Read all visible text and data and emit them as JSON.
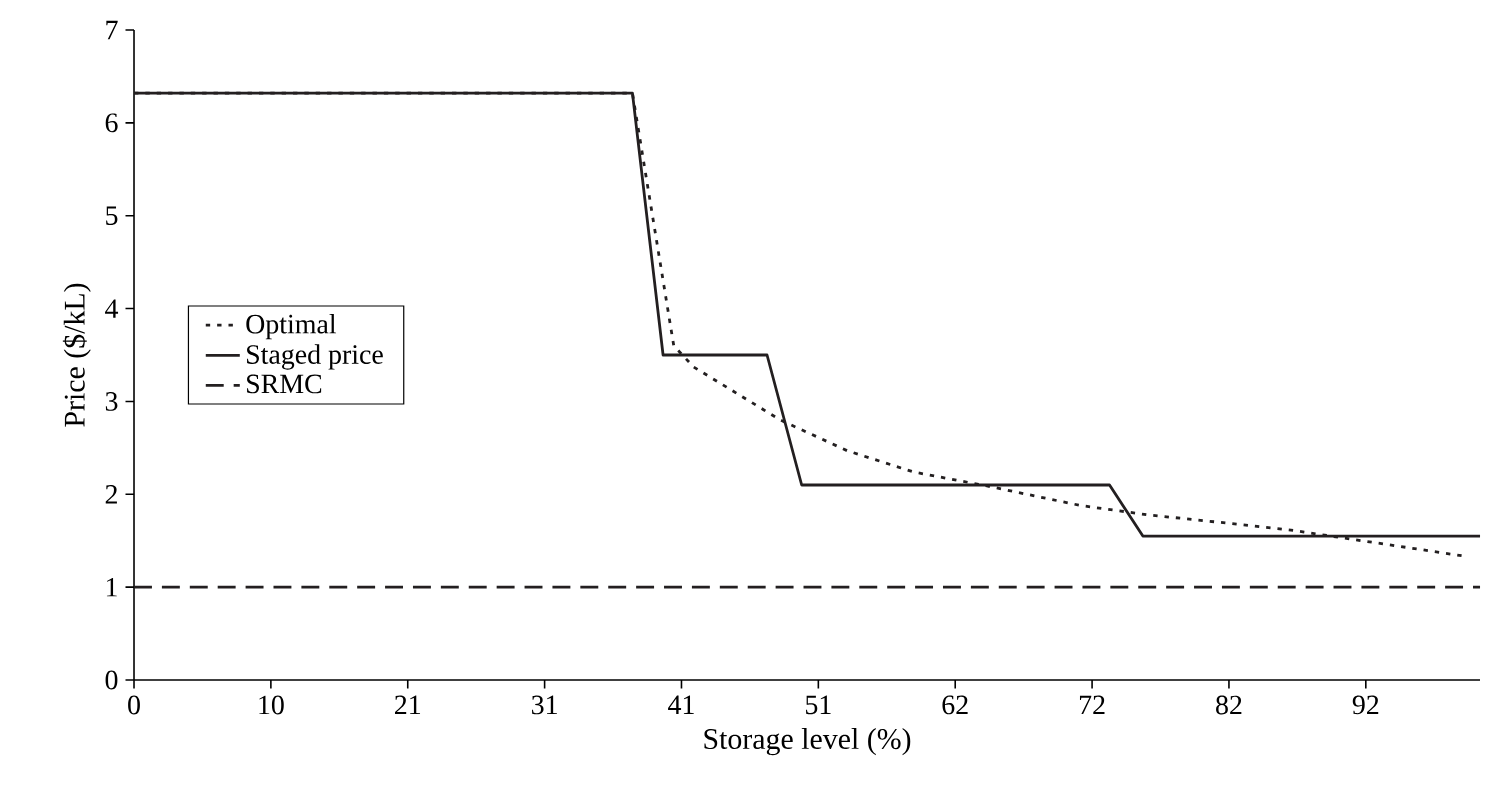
{
  "chart_data": {
    "type": "line",
    "xlabel": "Storage level (%)",
    "ylabel": "Price ($/kL)",
    "xlim": [
      0,
      101
    ],
    "ylim": [
      0,
      7
    ],
    "xticks": [
      {
        "value": 0,
        "label": "0"
      },
      {
        "value": 10.27,
        "label": "10"
      },
      {
        "value": 20.54,
        "label": "21"
      },
      {
        "value": 30.81,
        "label": "31"
      },
      {
        "value": 41.08,
        "label": "41"
      },
      {
        "value": 51.35,
        "label": "51"
      },
      {
        "value": 61.62,
        "label": "62"
      },
      {
        "value": 71.89,
        "label": "72"
      },
      {
        "value": 82.16,
        "label": "82"
      },
      {
        "value": 92.43,
        "label": "92"
      }
    ],
    "yticks": [
      0,
      1,
      2,
      3,
      4,
      5,
      6,
      7
    ],
    "legend": "left",
    "grid": false,
    "marker": "none",
    "series": [
      {
        "name": "Optimal",
        "color": "#231f20",
        "line_style": "dotted",
        "x": [
          0,
          37.4,
          40.5,
          42,
          48.5,
          53.5,
          58.5,
          64,
          71,
          76,
          82,
          87,
          94,
          100
        ],
        "values": [
          6.32,
          6.32,
          3.6,
          3.37,
          2.8,
          2.47,
          2.24,
          2.09,
          1.88,
          1.78,
          1.69,
          1.61,
          1.46,
          1.33
        ]
      },
      {
        "name": "Staged price",
        "color": "#231f20",
        "line_style": "solid",
        "x": [
          0,
          37.4,
          39.7,
          47.5,
          50.1,
          73.2,
          75.7,
          101
        ],
        "values": [
          6.32,
          6.32,
          3.5,
          3.5,
          2.1,
          2.1,
          1.55,
          1.55
        ]
      },
      {
        "name": "SRMC",
        "color": "#231f20",
        "line_style": "dashed",
        "x": [
          0,
          101
        ],
        "values": [
          1,
          1
        ]
      }
    ]
  }
}
